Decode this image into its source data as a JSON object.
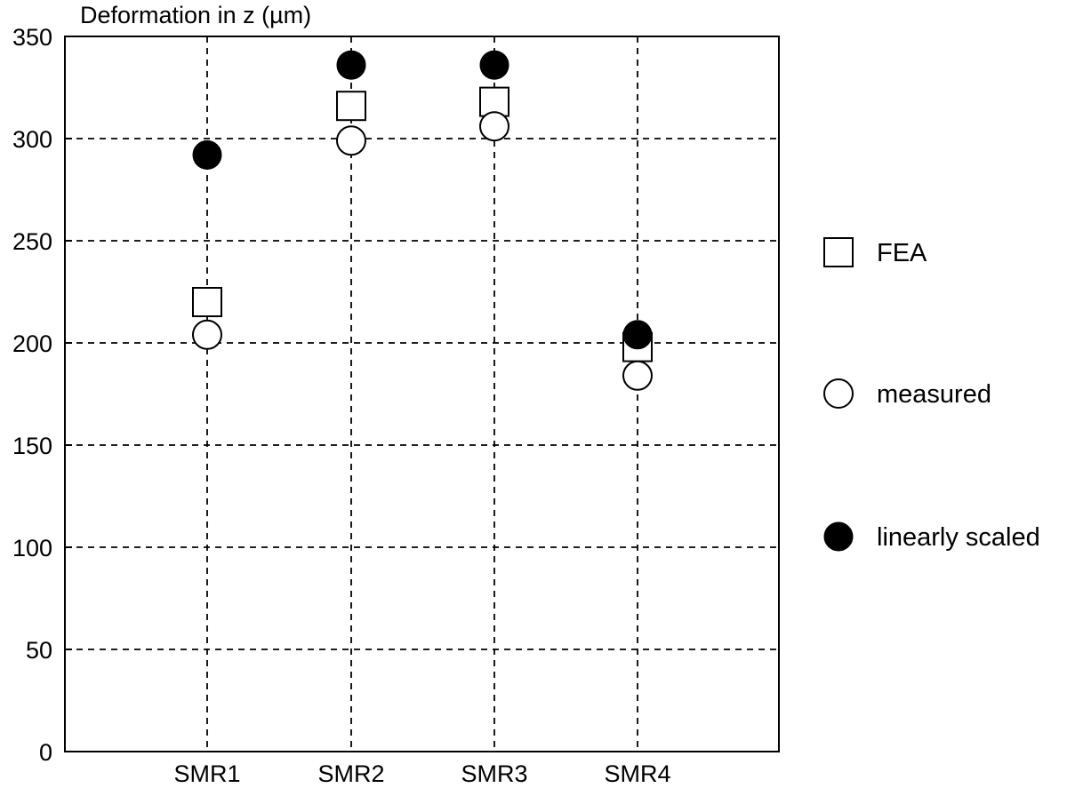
{
  "chart_data": {
    "type": "scatter",
    "title": "",
    "xlabel": "",
    "ylabel": "Deformation in z (µm)",
    "categories": [
      "SMR1",
      "SMR2",
      "SMR3",
      "SMR4"
    ],
    "ylim": [
      0,
      350
    ],
    "yticks": [
      0,
      50,
      100,
      150,
      200,
      250,
      300,
      350
    ],
    "grid": true,
    "legend_position": "right",
    "series": [
      {
        "name": "FEA",
        "marker": "open-square",
        "values": [
          220,
          316,
          318,
          198
        ]
      },
      {
        "name": "measured",
        "marker": "open-circle",
        "values": [
          204,
          299,
          306,
          184
        ]
      },
      {
        "name": "linearly scaled",
        "marker": "filled-circle",
        "values": [
          292,
          336,
          336,
          204
        ]
      }
    ]
  }
}
